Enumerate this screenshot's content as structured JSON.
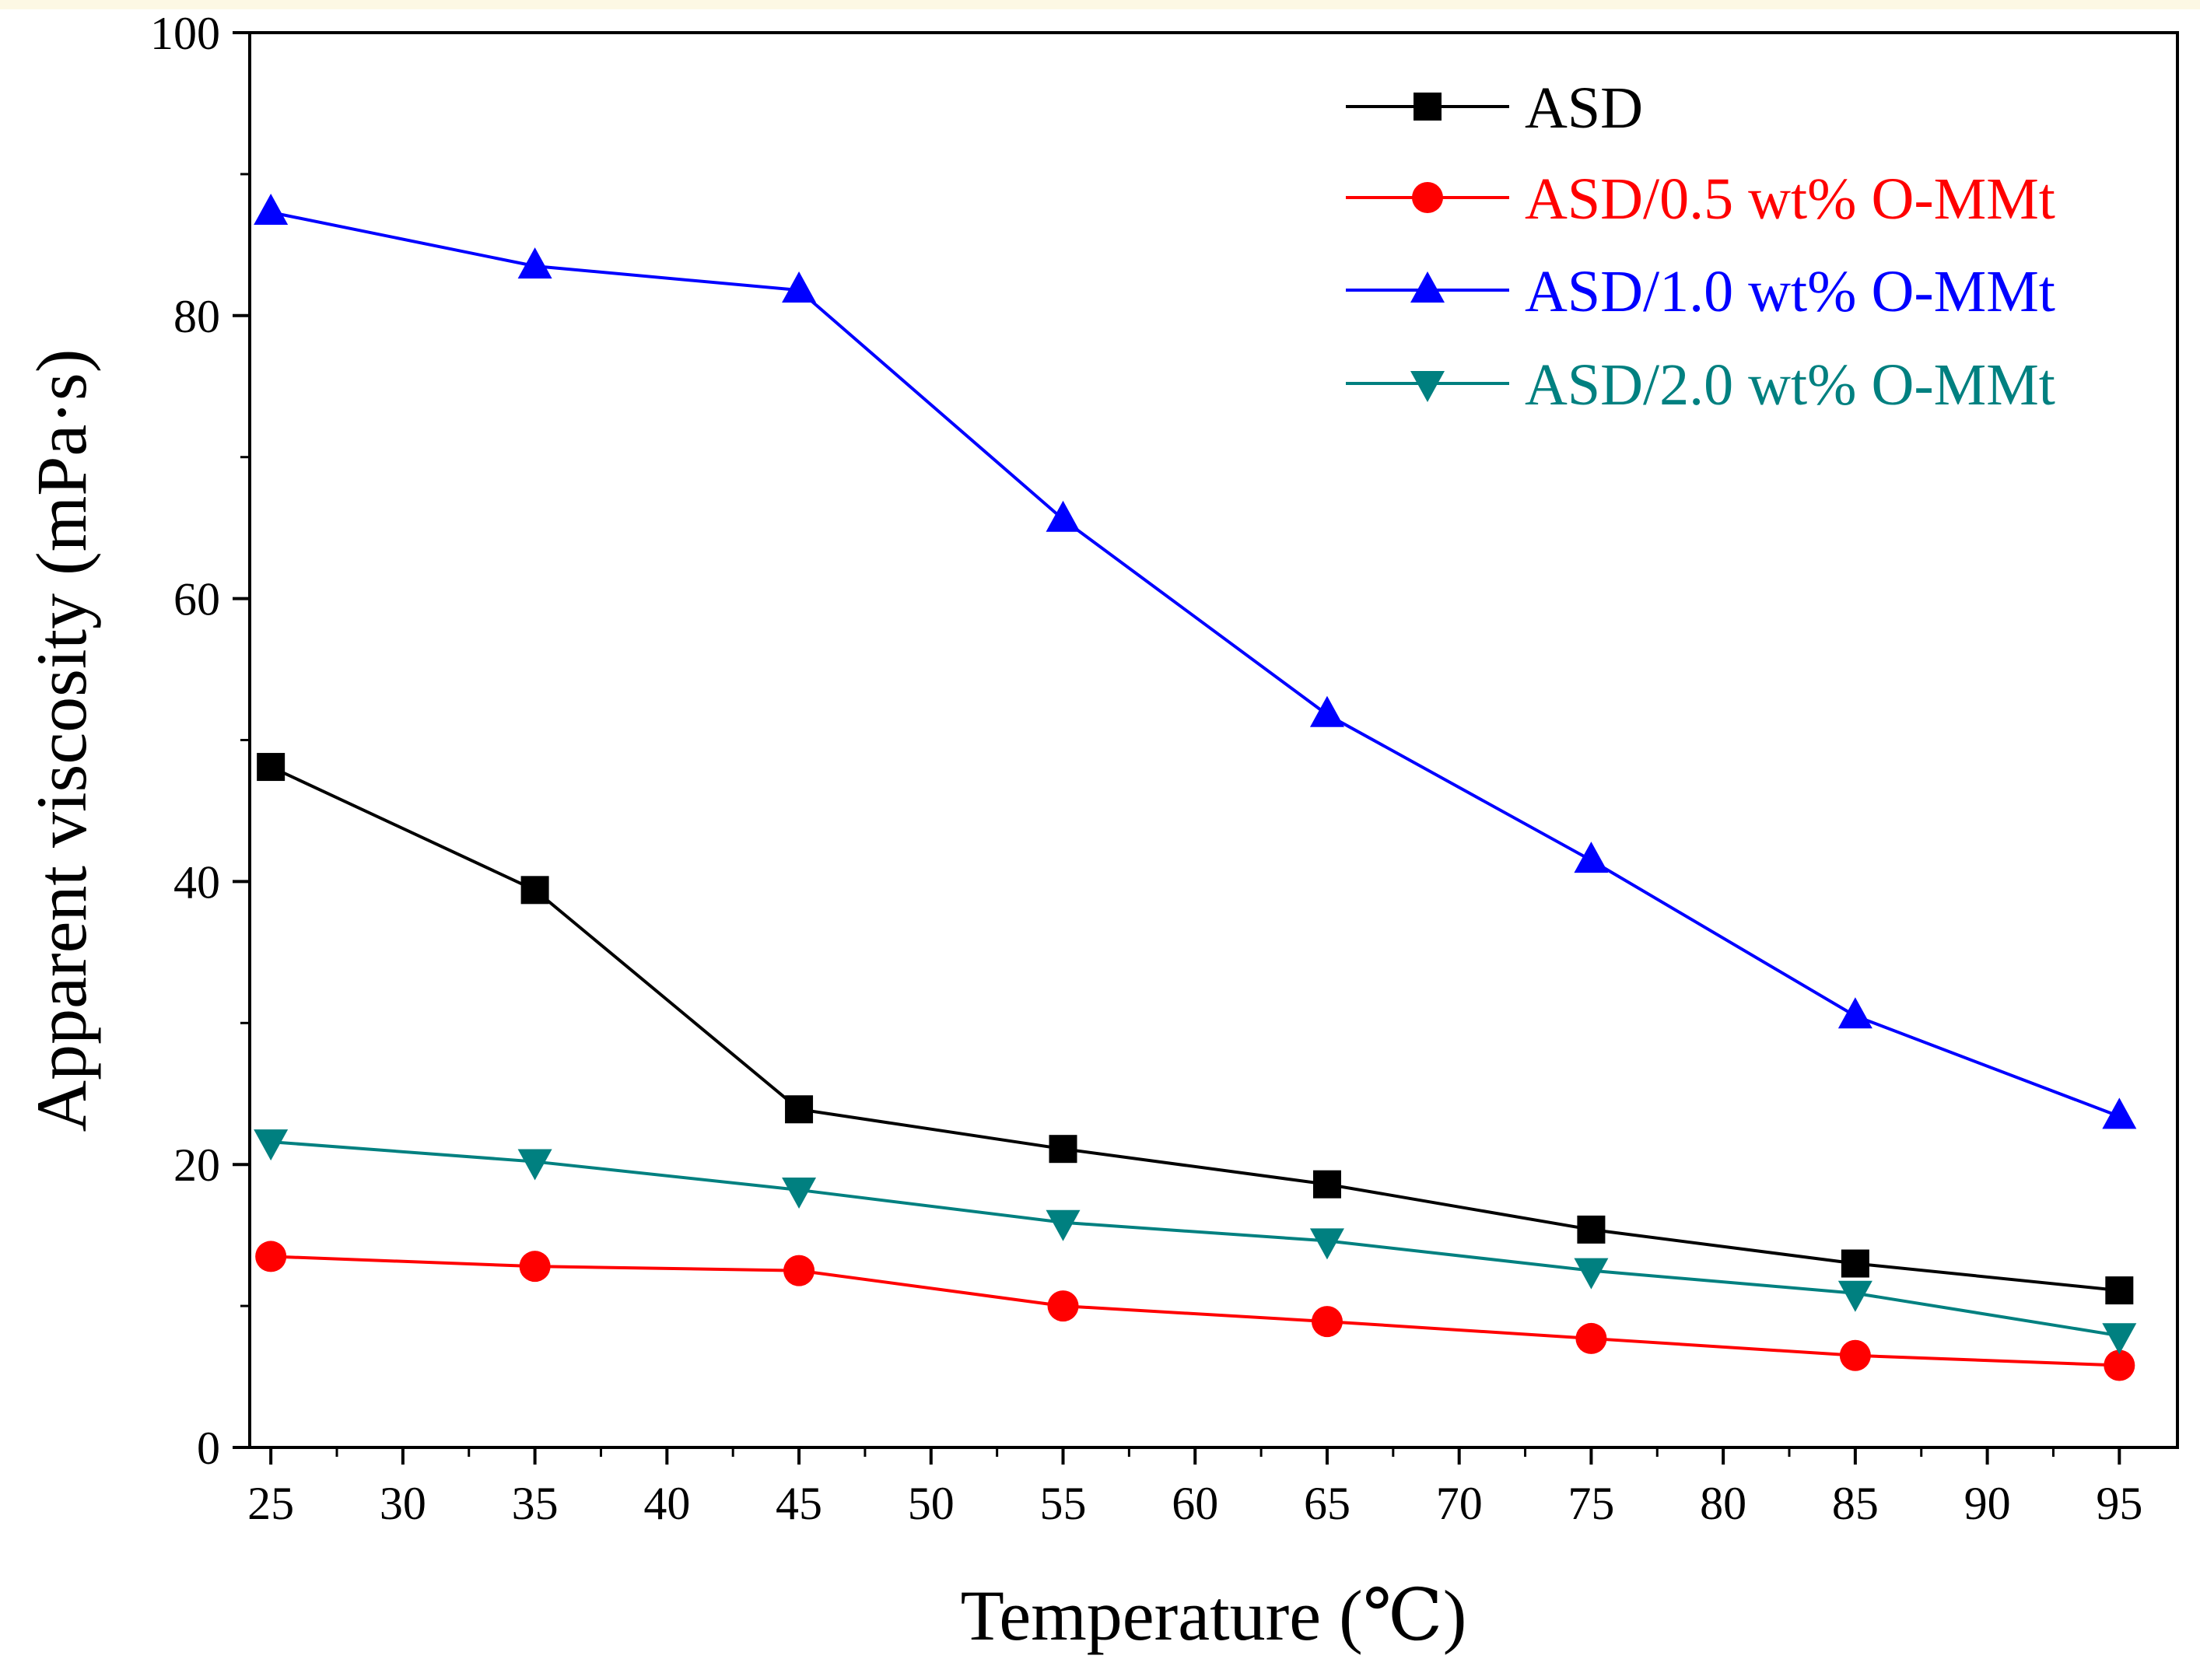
{
  "chart_data": {
    "type": "line",
    "title": "",
    "xlabel": "Temperature (℃)",
    "ylabel": "Apparent viscosity (mPa·s)",
    "xlim": [
      24.2,
      97.2
    ],
    "ylim": [
      0,
      100
    ],
    "x_ticks": [
      25,
      30,
      35,
      40,
      45,
      50,
      55,
      60,
      65,
      70,
      75,
      80,
      85,
      90,
      95
    ],
    "y_ticks": [
      0,
      20,
      40,
      60,
      80,
      100
    ],
    "grid": false,
    "legend_position": "top-right",
    "x": [
      25,
      35,
      45,
      55,
      65,
      75,
      85,
      95
    ],
    "series": [
      {
        "name": "ASD",
        "color": "#000000",
        "marker": "square",
        "values": [
          48.1,
          39.4,
          23.9,
          21.1,
          18.6,
          15.4,
          13.0,
          11.1
        ]
      },
      {
        "name": "ASD/0.5 wt% O-MMt",
        "color": "#ff0000",
        "marker": "circle",
        "values": [
          13.5,
          12.8,
          12.5,
          10.0,
          8.9,
          7.7,
          6.5,
          5.8
        ]
      },
      {
        "name": "ASD/1.0 wt% O-MMt",
        "color": "#0000ff",
        "marker": "triangle-up",
        "values": [
          87.3,
          83.5,
          81.8,
          65.6,
          51.8,
          41.5,
          30.5,
          23.4
        ]
      },
      {
        "name": "ASD/2.0 wt% O-MMt",
        "color": "#008080",
        "marker": "triangle-down",
        "values": [
          21.6,
          20.2,
          18.2,
          15.9,
          14.6,
          12.5,
          10.9,
          7.9
        ]
      }
    ]
  }
}
